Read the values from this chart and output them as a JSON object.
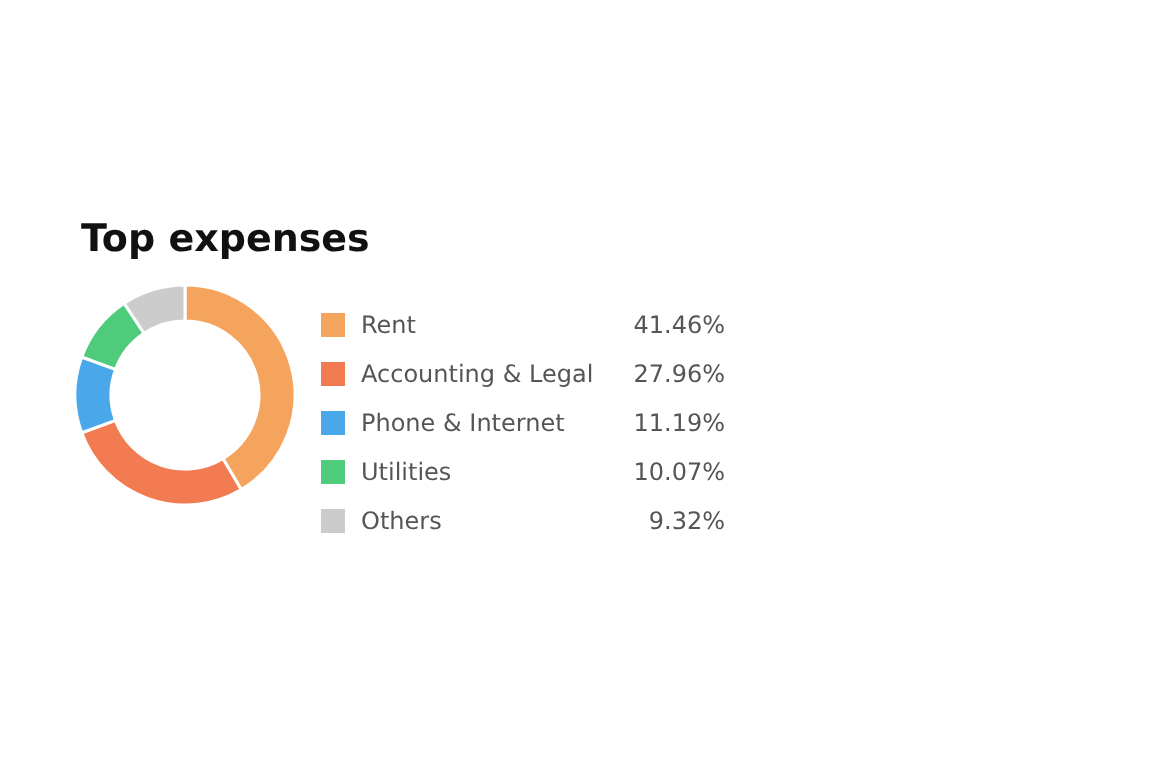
{
  "chart_data": {
    "type": "donut",
    "title": "Top expenses",
    "categories": [
      "Rent",
      "Accounting & Legal",
      "Phone & Internet",
      "Utilities",
      "Others"
    ],
    "values": [
      41.46,
      27.96,
      11.19,
      10.07,
      9.32
    ],
    "colors": [
      "#f4a45c",
      "#f27b52",
      "#4aa8ea",
      "#4fcb7c",
      "#cccccc"
    ],
    "value_labels": [
      "41.46%",
      "27.96%",
      "11.19%",
      "10.07%",
      "9.32%"
    ],
    "legend": "right"
  }
}
